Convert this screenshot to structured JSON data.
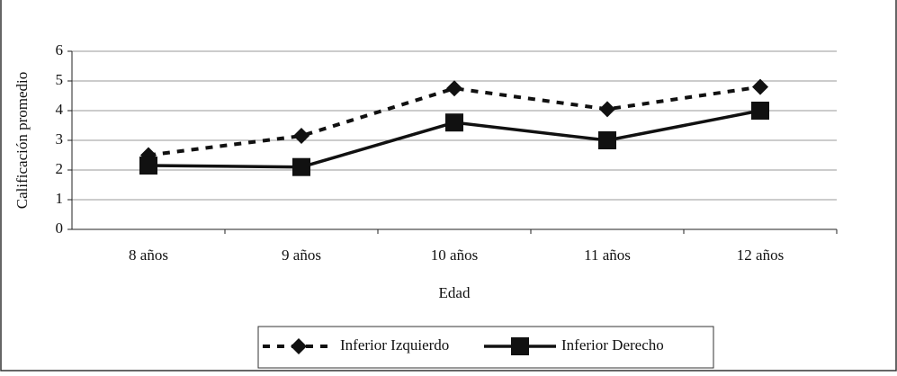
{
  "chart_data": {
    "type": "line",
    "x_label": "Edad",
    "y_label": "Calificación promedio",
    "categories": [
      "8 años",
      "9 años",
      "10 años",
      "11 años",
      "12 años"
    ],
    "series": [
      {
        "name": "Inferior Izquierdo",
        "color": "#111111",
        "dash": true,
        "marker": "diamond",
        "values": [
          2.5,
          3.15,
          4.75,
          4.05,
          4.8
        ]
      },
      {
        "name": "Inferior Derecho",
        "color": "#111111",
        "dash": false,
        "marker": "square",
        "values": [
          2.15,
          2.1,
          3.6,
          3.0,
          4.0
        ]
      }
    ],
    "ylim": [
      0,
      6
    ],
    "yticks": [
      0,
      1,
      2,
      3,
      4,
      5,
      6
    ],
    "grid": true,
    "legend": "bottom"
  }
}
